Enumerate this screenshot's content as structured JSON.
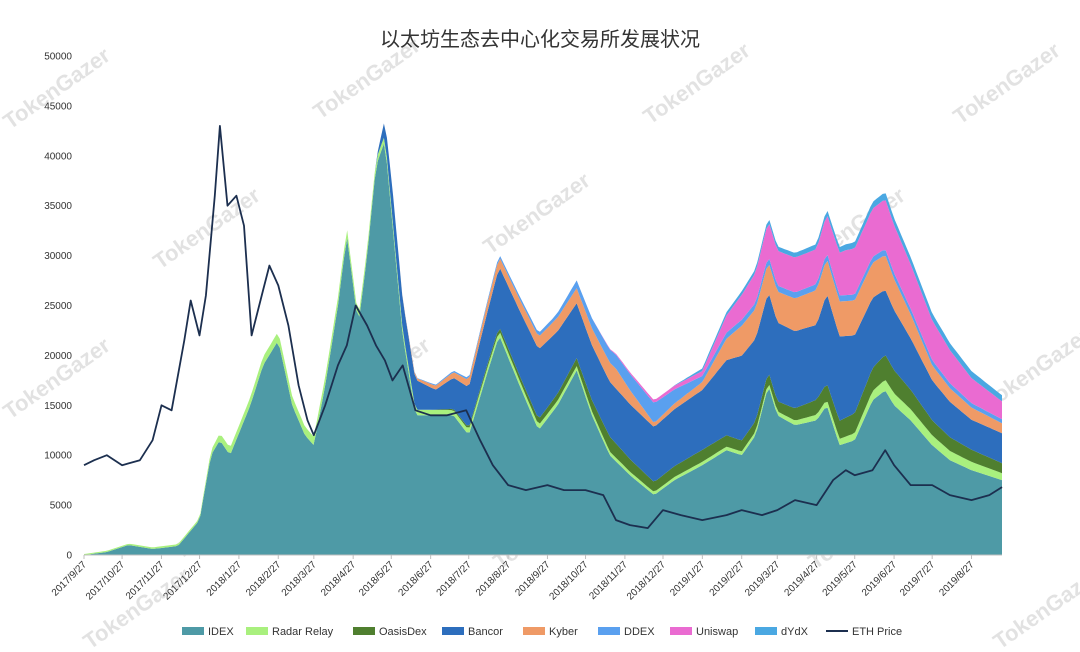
{
  "watermark_text": "TokenGazer",
  "chart_data": {
    "type": "area",
    "title": "以太坊生态去中心化交易所发展状况",
    "xlabel": "",
    "ylabel": "",
    "ylim": [
      0,
      50000
    ],
    "yticks": [
      0,
      5000,
      10000,
      15000,
      20000,
      25000,
      30000,
      35000,
      40000,
      45000,
      50000
    ],
    "xticks": [
      "2017/9/27",
      "2017/10/27",
      "2017/11/27",
      "2017/12/27",
      "2018/1/27",
      "2018/2/27",
      "2018/3/27",
      "2018/4/27",
      "2018/5/27",
      "2018/6/27",
      "2018/7/27",
      "2018/8/27",
      "2018/9/27",
      "2018/10/27",
      "2018/11/27",
      "2018/12/27",
      "2019/1/27",
      "2019/2/27",
      "2019/3/27",
      "2019/4/27",
      "2019/5/27",
      "2019/6/27",
      "2019/7/27",
      "2019/8/27"
    ],
    "x_start": "2017/9/27",
    "x_end": "2019/9/20",
    "stacked": true,
    "grid": false,
    "legend_position": "bottom",
    "series": [
      {
        "name": "IDEX",
        "color": "#4e9aa6",
        "points": [
          [
            "2017/9/27",
            0
          ],
          [
            "2017/10/15",
            300
          ],
          [
            "2017/11/1",
            1000
          ],
          [
            "2017/11/20",
            600
          ],
          [
            "2017/12/10",
            900
          ],
          [
            "2017/12/27",
            3500
          ],
          [
            "2018/1/5",
            10000
          ],
          [
            "2018/1/12",
            11500
          ],
          [
            "2018/1/20",
            10000
          ],
          [
            "2018/2/5",
            15000
          ],
          [
            "2018/2/15",
            19000
          ],
          [
            "2018/2/27",
            21500
          ],
          [
            "2018/3/10",
            15000
          ],
          [
            "2018/3/20",
            12000
          ],
          [
            "2018/3/27",
            11000
          ],
          [
            "2018/4/5",
            17000
          ],
          [
            "2018/4/15",
            25000
          ],
          [
            "2018/4/22",
            32000
          ],
          [
            "2018/5/1",
            23000
          ],
          [
            "2018/5/8",
            30000
          ],
          [
            "2018/5/15",
            39000
          ],
          [
            "2018/5/22",
            41500
          ],
          [
            "2018/5/28",
            33000
          ],
          [
            "2018/6/5",
            22000
          ],
          [
            "2018/6/15",
            14000
          ],
          [
            "2018/6/27",
            14000
          ],
          [
            "2018/7/15",
            14000
          ],
          [
            "2018/7/27",
            12000
          ],
          [
            "2018/8/10",
            18000
          ],
          [
            "2018/8/20",
            22000
          ],
          [
            "2018/9/5",
            17000
          ],
          [
            "2018/9/20",
            12500
          ],
          [
            "2018/10/5",
            15000
          ],
          [
            "2018/10/20",
            18500
          ],
          [
            "2018/11/1",
            14000
          ],
          [
            "2018/11/15",
            10000
          ],
          [
            "2018/12/1",
            8000
          ],
          [
            "2018/12/20",
            6000
          ],
          [
            "2019/1/5",
            7500
          ],
          [
            "2019/1/27",
            9000
          ],
          [
            "2019/2/15",
            10500
          ],
          [
            "2019/2/27",
            10000
          ],
          [
            "2019/3/10",
            12000
          ],
          [
            "2019/3/20",
            17000
          ],
          [
            "2019/3/27",
            14000
          ],
          [
            "2019/4/10",
            13000
          ],
          [
            "2019/4/27",
            13500
          ],
          [
            "2019/5/5",
            15000
          ],
          [
            "2019/5/15",
            11000
          ],
          [
            "2019/5/27",
            11500
          ],
          [
            "2019/6/10",
            15500
          ],
          [
            "2019/6/20",
            16500
          ],
          [
            "2019/6/27",
            15000
          ],
          [
            "2019/7/10",
            13500
          ],
          [
            "2019/7/27",
            11000
          ],
          [
            "2019/8/10",
            9500
          ],
          [
            "2019/8/27",
            8500
          ],
          [
            "2019/9/20",
            7500
          ]
        ]
      },
      {
        "name": "Radar Relay",
        "color": "#a9f07e",
        "points": [
          [
            "2017/9/27",
            100
          ],
          [
            "2017/12/27",
            200
          ],
          [
            "2018/1/12",
            700
          ],
          [
            "2018/2/27",
            900
          ],
          [
            "2018/4/22",
            800
          ],
          [
            "2018/5/22",
            600
          ],
          [
            "2018/7/27",
            500
          ],
          [
            "2018/9/20",
            500
          ],
          [
            "2018/12/20",
            300
          ],
          [
            "2019/3/27",
            400
          ],
          [
            "2019/5/27",
            700
          ],
          [
            "2019/6/27",
            1200
          ],
          [
            "2019/7/27",
            1000
          ],
          [
            "2019/9/20",
            700
          ]
        ]
      },
      {
        "name": "OasisDex",
        "color": "#4f7f2f",
        "points": [
          [
            "2017/9/27",
            0
          ],
          [
            "2018/6/27",
            0
          ],
          [
            "2018/9/5",
            500
          ],
          [
            "2018/10/20",
            800
          ],
          [
            "2018/11/15",
            1500
          ],
          [
            "2018/12/20",
            1000
          ],
          [
            "2019/1/27",
            1200
          ],
          [
            "2019/3/27",
            1000
          ],
          [
            "2019/5/27",
            2000
          ],
          [
            "2019/6/20",
            2500
          ],
          [
            "2019/7/27",
            1500
          ],
          [
            "2019/9/20",
            1000
          ]
        ]
      },
      {
        "name": "Bancor",
        "color": "#2d6ebd",
        "points": [
          [
            "2017/9/27",
            0
          ],
          [
            "2018/5/15",
            0
          ],
          [
            "2018/5/28",
            3000
          ],
          [
            "2018/6/15",
            3000
          ],
          [
            "2018/7/1",
            2000
          ],
          [
            "2018/8/20",
            6000
          ],
          [
            "2018/9/20",
            7000
          ],
          [
            "2018/10/20",
            5500
          ],
          [
            "2018/11/15",
            5500
          ],
          [
            "2018/12/20",
            5500
          ],
          [
            "2019/1/27",
            6000
          ],
          [
            "2019/2/27",
            8500
          ],
          [
            "2019/3/20",
            8000
          ],
          [
            "2019/4/27",
            7500
          ],
          [
            "2019/5/5",
            9000
          ],
          [
            "2019/6/20",
            6500
          ],
          [
            "2019/7/27",
            4000
          ],
          [
            "2019/8/27",
            3000
          ],
          [
            "2019/9/20",
            3000
          ]
        ]
      },
      {
        "name": "Kyber",
        "color": "#ef9a66",
        "points": [
          [
            "2017/9/27",
            0
          ],
          [
            "2018/6/1",
            0
          ],
          [
            "2018/6/15",
            200
          ],
          [
            "2018/8/20",
            1000
          ],
          [
            "2018/10/20",
            1500
          ],
          [
            "2018/11/20",
            2000
          ],
          [
            "2018/12/20",
            400
          ],
          [
            "2019/1/27",
            800
          ],
          [
            "2019/2/27",
            3000
          ],
          [
            "2019/3/20",
            3000
          ],
          [
            "2019/4/27",
            3500
          ],
          [
            "2019/5/27",
            3500
          ],
          [
            "2019/6/20",
            3500
          ],
          [
            "2019/7/27",
            1500
          ],
          [
            "2019/9/20",
            1000
          ]
        ]
      },
      {
        "name": "DDEX",
        "color": "#5aa0ef",
        "points": [
          [
            "2017/9/27",
            0
          ],
          [
            "2018/6/1",
            0
          ],
          [
            "2018/10/1",
            400
          ],
          [
            "2018/12/20",
            2000
          ],
          [
            "2019/1/27",
            600
          ],
          [
            "2019/3/27",
            600
          ],
          [
            "2019/6/20",
            600
          ],
          [
            "2019/9/20",
            400
          ]
        ]
      },
      {
        "name": "Uniswap",
        "color": "#ea6bd1",
        "points": [
          [
            "2017/9/27",
            0
          ],
          [
            "2018/11/1",
            0
          ],
          [
            "2019/1/27",
            500
          ],
          [
            "2019/2/27",
            2500
          ],
          [
            "2019/3/20",
            3500
          ],
          [
            "2019/4/27",
            3500
          ],
          [
            "2019/5/20",
            4500
          ],
          [
            "2019/6/20",
            5000
          ],
          [
            "2019/7/27",
            4000
          ],
          [
            "2019/8/27",
            2500
          ],
          [
            "2019/9/20",
            1800
          ]
        ]
      },
      {
        "name": "dYdX",
        "color": "#4aa8e2",
        "points": [
          [
            "2017/9/27",
            0
          ],
          [
            "2019/1/1",
            0
          ],
          [
            "2019/2/1",
            300
          ],
          [
            "2019/4/27",
            500
          ],
          [
            "2019/6/20",
            700
          ],
          [
            "2019/8/27",
            700
          ],
          [
            "2019/9/20",
            600
          ]
        ]
      }
    ],
    "line": {
      "name": "ETH Price",
      "color": "#1c2f4f",
      "points": [
        [
          "2017/9/27",
          9000
        ],
        [
          "2017/10/5",
          9500
        ],
        [
          "2017/10/15",
          10000
        ],
        [
          "2017/10/27",
          9000
        ],
        [
          "2017/11/10",
          9500
        ],
        [
          "2017/11/20",
          11500
        ],
        [
          "2017/11/27",
          15000
        ],
        [
          "2017/12/5",
          14500
        ],
        [
          "2017/12/15",
          21500
        ],
        [
          "2017/12/20",
          25500
        ],
        [
          "2017/12/27",
          22000
        ],
        [
          "2018/1/1",
          26000
        ],
        [
          "2018/1/8",
          36000
        ],
        [
          "2018/1/12",
          43000
        ],
        [
          "2018/1/18",
          35000
        ],
        [
          "2018/1/25",
          36000
        ],
        [
          "2018/1/31",
          33000
        ],
        [
          "2018/2/6",
          22000
        ],
        [
          "2018/2/15",
          26500
        ],
        [
          "2018/2/20",
          29000
        ],
        [
          "2018/2/27",
          27000
        ],
        [
          "2018/3/7",
          23000
        ],
        [
          "2018/3/15",
          17000
        ],
        [
          "2018/3/22",
          13500
        ],
        [
          "2018/3/27",
          12000
        ],
        [
          "2018/4/5",
          15000
        ],
        [
          "2018/4/15",
          19000
        ],
        [
          "2018/4/22",
          21000
        ],
        [
          "2018/4/29",
          25000
        ],
        [
          "2018/5/8",
          23000
        ],
        [
          "2018/5/15",
          21000
        ],
        [
          "2018/5/22",
          19500
        ],
        [
          "2018/5/28",
          17500
        ],
        [
          "2018/6/5",
          19000
        ],
        [
          "2018/6/15",
          14500
        ],
        [
          "2018/6/27",
          14000
        ],
        [
          "2018/7/10",
          14000
        ],
        [
          "2018/7/25",
          14500
        ],
        [
          "2018/8/5",
          11500
        ],
        [
          "2018/8/15",
          9000
        ],
        [
          "2018/8/27",
          7000
        ],
        [
          "2018/9/10",
          6500
        ],
        [
          "2018/9/27",
          7000
        ],
        [
          "2018/10/10",
          6500
        ],
        [
          "2018/10/27",
          6500
        ],
        [
          "2018/11/10",
          6000
        ],
        [
          "2018/11/20",
          3500
        ],
        [
          "2018/12/1",
          3000
        ],
        [
          "2018/12/15",
          2700
        ],
        [
          "2018/12/27",
          4500
        ],
        [
          "2019/1/10",
          4000
        ],
        [
          "2019/1/27",
          3500
        ],
        [
          "2019/2/15",
          4000
        ],
        [
          "2019/2/27",
          4500
        ],
        [
          "2019/3/15",
          4000
        ],
        [
          "2019/3/27",
          4500
        ],
        [
          "2019/4/10",
          5500
        ],
        [
          "2019/4/27",
          5000
        ],
        [
          "2019/5/10",
          7500
        ],
        [
          "2019/5/20",
          8500
        ],
        [
          "2019/5/27",
          8000
        ],
        [
          "2019/6/10",
          8500
        ],
        [
          "2019/6/20",
          10500
        ],
        [
          "2019/6/27",
          9000
        ],
        [
          "2019/7/10",
          7000
        ],
        [
          "2019/7/27",
          7000
        ],
        [
          "2019/8/10",
          6000
        ],
        [
          "2019/8/27",
          5500
        ],
        [
          "2019/9/10",
          6000
        ],
        [
          "2019/9/20",
          6800
        ]
      ]
    }
  }
}
